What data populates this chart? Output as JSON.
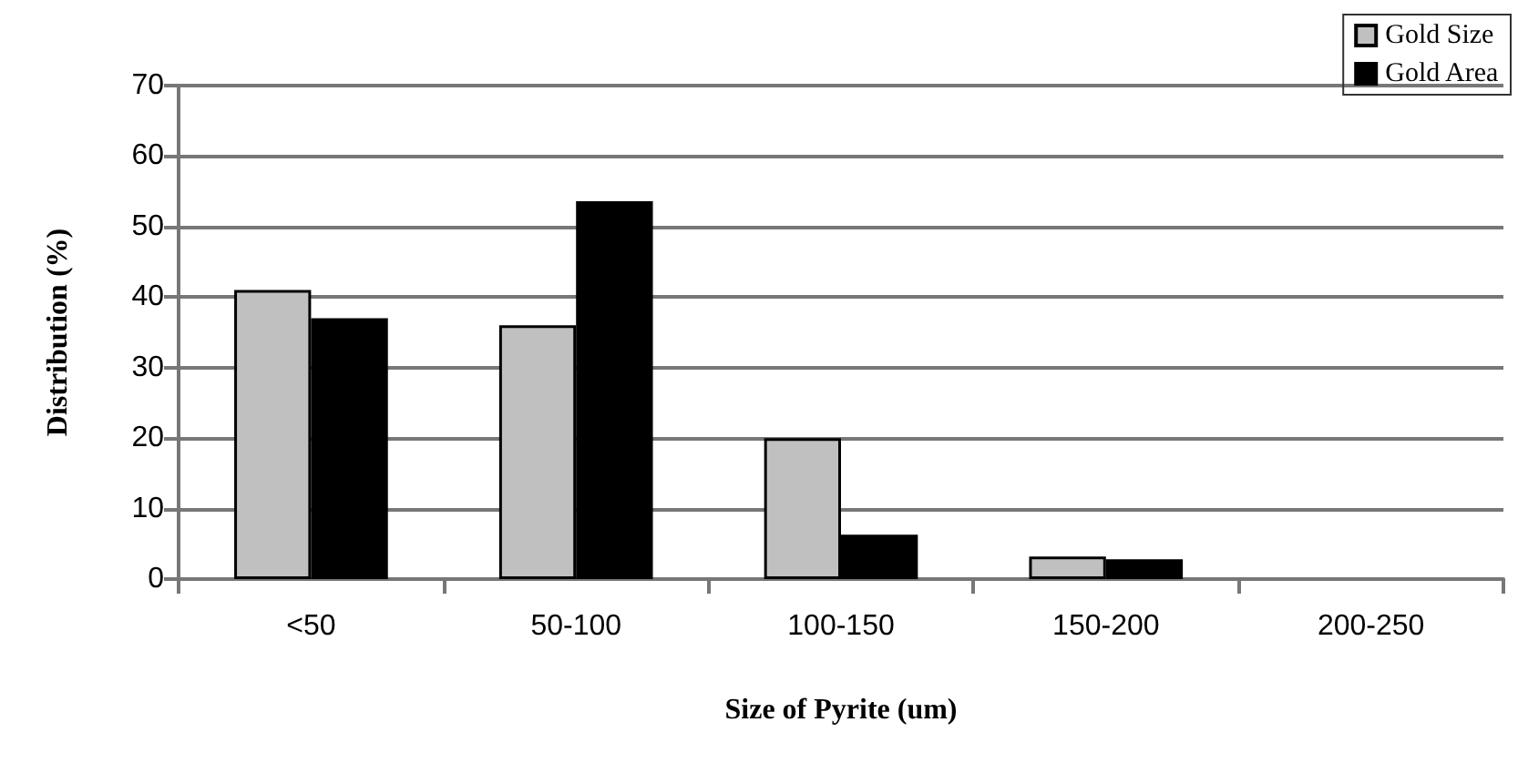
{
  "chart_data": {
    "type": "bar",
    "xlabel": "Size of Pyrite (um)",
    "ylabel": "Distribution (%)",
    "categories": [
      "<50",
      "50-100",
      "100-150",
      "150-200",
      "200-250"
    ],
    "series": [
      {
        "name": "Gold Size",
        "color": "#c0c0c0",
        "values": [
          41,
          36,
          20,
          3.2,
          null
        ]
      },
      {
        "name": "Gold Area",
        "color": "#000000",
        "values": [
          37,
          53.6,
          6.3,
          2.8,
          null
        ]
      }
    ],
    "ylim": [
      0,
      70
    ],
    "yticks": [
      0,
      10,
      20,
      30,
      40,
      50,
      60,
      70
    ],
    "grid": "y",
    "legend": "top right"
  }
}
